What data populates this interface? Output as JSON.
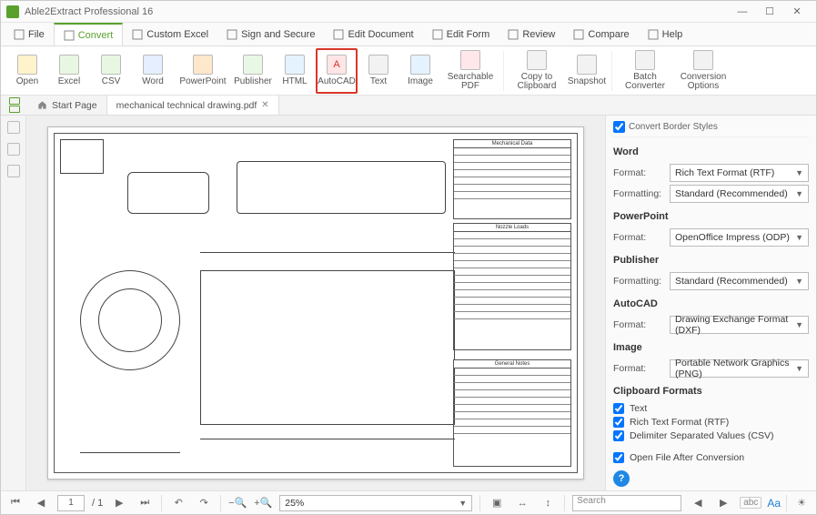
{
  "app": {
    "title": "Able2Extract Professional 16"
  },
  "windowControls": {
    "min": "—",
    "max": "☐",
    "close": "✕"
  },
  "menu": [
    {
      "label": "File",
      "active": false
    },
    {
      "label": "Convert",
      "active": true
    },
    {
      "label": "Custom Excel",
      "active": false
    },
    {
      "label": "Sign and Secure",
      "active": false
    },
    {
      "label": "Edit Document",
      "active": false
    },
    {
      "label": "Edit Form",
      "active": false
    },
    {
      "label": "Review",
      "active": false
    },
    {
      "label": "Compare",
      "active": false
    },
    {
      "label": "Help",
      "active": false
    }
  ],
  "ribbon": [
    {
      "name": "open",
      "label": "Open",
      "cls": "ric-open"
    },
    {
      "name": "excel",
      "label": "Excel",
      "cls": "ric-excel"
    },
    {
      "name": "csv",
      "label": "CSV",
      "cls": "ric-csv"
    },
    {
      "name": "word",
      "label": "Word",
      "cls": "ric-word"
    },
    {
      "name": "powerpoint",
      "label": "PowerPoint",
      "cls": "ric-ppt",
      "wide": true
    },
    {
      "name": "publisher",
      "label": "Publisher",
      "cls": "ric-pub"
    },
    {
      "name": "html",
      "label": "HTML",
      "cls": "ric-html"
    },
    {
      "name": "autocad",
      "label": "AutoCAD",
      "cls": "ric-acad",
      "highlight": true,
      "glyph": "A"
    },
    {
      "name": "text",
      "label": "Text",
      "cls": "ric-text"
    },
    {
      "name": "image",
      "label": "Image",
      "cls": "ric-img"
    },
    {
      "name": "searchable-pdf",
      "label": "Searchable PDF",
      "cls": "ric-spdf",
      "wide": true
    },
    {
      "name": "copy-to-clipboard",
      "label": "Copy to\nClipboard",
      "cls": "ric-clip",
      "wide": true,
      "sepBefore": true
    },
    {
      "name": "snapshot",
      "label": "Snapshot",
      "cls": "ric-snap"
    },
    {
      "name": "batch-converter",
      "label": "Batch\nConverter",
      "cls": "ric-batch",
      "wide": true,
      "sepBefore": true
    },
    {
      "name": "conversion-options",
      "label": "Conversion\nOptions",
      "cls": "ric-opts",
      "wide": true
    }
  ],
  "tabs": {
    "startPage": "Start Page",
    "doc": "mechanical technical drawing.pdf"
  },
  "panel": {
    "topCut": "Convert Border Styles",
    "sections": {
      "word": {
        "title": "Word",
        "format": "Rich Text Format (RTF)",
        "formatting": "Standard (Recommended)"
      },
      "powerpoint": {
        "title": "PowerPoint",
        "format": "OpenOffice Impress (ODP)"
      },
      "publisher": {
        "title": "Publisher",
        "formatting": "Standard (Recommended)"
      },
      "autocad": {
        "title": "AutoCAD",
        "format": "Drawing Exchange Format (DXF)"
      },
      "image": {
        "title": "Image",
        "format": "Portable Network Graphics (PNG)"
      },
      "clipboard": {
        "title": "Clipboard Formats"
      }
    },
    "labels": {
      "format": "Format:",
      "formatting": "Formatting:"
    },
    "checks": {
      "text": "Text",
      "rtf": "Rich Text Format (RTF)",
      "csv": "Delimiter Separated Values (CSV)",
      "open": "Open File After Conversion"
    }
  },
  "drawing": {
    "tableHeaders": {
      "t1": "Mechanical Data",
      "t2": "Nozzle Loads",
      "t3": "General Notes"
    }
  },
  "footer": {
    "page": "1",
    "pages": "/ 1",
    "zoom": "25%",
    "searchPlaceholder": "Search",
    "abc": "abc",
    "aa": "Aa"
  }
}
